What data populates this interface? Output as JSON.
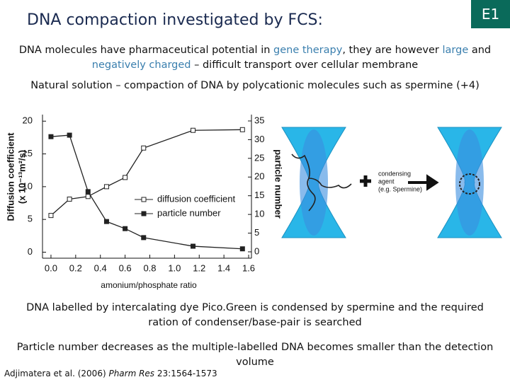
{
  "header": {
    "title": "DNA compaction investigated by FCS:",
    "badge": "E1"
  },
  "paragraphs": [
    [
      {
        "text": "DNA molecules have pharmaceutical potential in "
      },
      {
        "text": "gene therapy",
        "color": "#3a7fae"
      },
      {
        "text": ", they are however "
      },
      {
        "text": "large",
        "color": "#3a7fae"
      },
      {
        "text": " and "
      },
      {
        "text": "negatively charged",
        "color": "#3a7fae"
      },
      {
        "text": " – difficult transport over cellular membrane"
      }
    ],
    [
      {
        "text": "Natural solution – compaction of DNA by polycationic molecules such as spermine (+4)"
      }
    ],
    [
      {
        "text": "DNA labelled by intercalating dye Pico.Green is condensed by spermine and the required ration of condenser/base-pair is searched"
      }
    ],
    [
      {
        "text": "Particle number decreases as the multiple-labelled DNA becomes smaller than the detection volume"
      }
    ]
  ],
  "diagram": {
    "label_lines": [
      "condensing",
      "agent",
      "(e.g. Spermine)"
    ]
  },
  "citation": {
    "authors": "Adjimatera et al. (2006) ",
    "journal": "Pharm Res",
    "rest": " 23:1564-1573"
  },
  "chart_data": {
    "type": "line",
    "x_label": "amonium/phosphate ratio",
    "y_label": [
      "Diffusion coefficient",
      "(x 10⁻¹³m²/s)"
    ],
    "y2_label": "particle number",
    "x": [
      0,
      0.15,
      0.3,
      0.45,
      0.6,
      0.75,
      1.15,
      1.55
    ],
    "series": [
      {
        "name": "diffusion coefficient",
        "color": "#222222",
        "marker": "open-square",
        "values": [
          5.6,
          8.1,
          8.5,
          10.0,
          11.4,
          15.9,
          18.6,
          18.7
        ]
      },
      {
        "name": "particle number",
        "color": "#222222",
        "marker": "filled-square",
        "axis": "y2",
        "values": [
          30.8,
          31.2,
          16.1,
          8.1,
          6.2,
          3.8,
          1.5,
          0.8
        ]
      }
    ],
    "xlim": [
      -0.08,
      1.64
    ],
    "xticks": [
      {
        "value": 0,
        "label": "0.0"
      },
      {
        "value": 0.2,
        "label": "0.2"
      },
      {
        "value": 0.4,
        "label": "0.4"
      },
      {
        "value": 0.6,
        "label": "0.6"
      },
      {
        "value": 0.8,
        "label": "0.8"
      },
      {
        "value": 1,
        "label": "1.0"
      },
      {
        "value": 1.2,
        "label": "1.2"
      },
      {
        "value": 1.4,
        "label": "1.4"
      },
      {
        "value": 1.6,
        "label": "1.6"
      }
    ],
    "ylim": [
      -2,
      21
    ],
    "yticks": [
      0,
      5,
      10,
      15,
      20
    ],
    "y2lim": [
      -3.6,
      36.7
    ],
    "y2ticks": [
      0,
      5,
      10,
      15,
      20,
      25,
      30,
      35
    ],
    "grid": false,
    "legend": "center"
  }
}
